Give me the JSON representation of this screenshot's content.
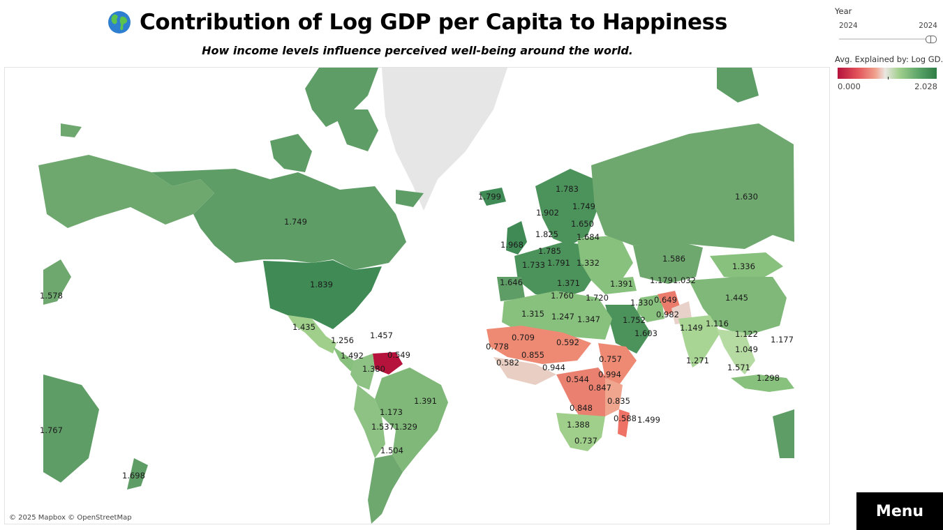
{
  "header": {
    "title": "Contribution of Log GDP per Capita to Happiness",
    "subtitle": "How income levels influence perceived well-being around the world.",
    "icon": "globe-icon"
  },
  "filters": {
    "year_title": "Year",
    "year_min": "2024",
    "year_max": "2024",
    "selected_year": 2024
  },
  "legend": {
    "title": "Avg. Explained by: Log GD..",
    "min_label": "0.000",
    "max_label": "2.028",
    "min": 0.0,
    "max": 2.028,
    "colors": {
      "low": "#b5123c",
      "mid": "#eae6e2",
      "high": "#2f7c45",
      "no_data": "#e6e6e6"
    }
  },
  "map": {
    "attribution": "© 2025 Mapbox © OpenStreetMap",
    "regions": [
      {
        "name": "Canada",
        "label": "1.749",
        "value": 1.749
      },
      {
        "name": "United States",
        "label": "1.839",
        "value": 1.839
      },
      {
        "name": "Mexico",
        "label": "1.435",
        "value": 1.435
      },
      {
        "name": "Guatemala",
        "label": "1.256",
        "value": 1.256
      },
      {
        "name": "Costa Rica",
        "label": "1.492",
        "value": 1.492
      },
      {
        "name": "Dominican Republic",
        "label": "1.457",
        "value": 1.457
      },
      {
        "name": "Venezuela",
        "label": "0.549",
        "value": 0.549
      },
      {
        "name": "Colombia",
        "label": "1.380",
        "value": 1.38
      },
      {
        "name": "Brazil",
        "label": "1.391",
        "value": 1.391
      },
      {
        "name": "Bolivia",
        "label": "1.173",
        "value": 1.173
      },
      {
        "name": "Chile",
        "label": "1.537",
        "value": 1.537
      },
      {
        "name": "Paraguay",
        "label": "1.329",
        "value": 1.329
      },
      {
        "name": "Argentina",
        "label": "1.504",
        "value": 1.504
      },
      {
        "name": "Japan",
        "label": "1.578",
        "value": 1.578
      },
      {
        "name": "Australia",
        "label": "1.767",
        "value": 1.767
      },
      {
        "name": "New Zealand",
        "label": "1.698",
        "value": 1.698
      },
      {
        "name": "Iceland",
        "label": "1.799",
        "value": 1.799
      },
      {
        "name": "Norway",
        "label": "1.902",
        "value": 1.902
      },
      {
        "name": "Sweden",
        "label": "1.783",
        "value": 1.783
      },
      {
        "name": "Finland",
        "label": "1.749",
        "value": 1.749
      },
      {
        "name": "Estonia",
        "label": "1.650",
        "value": 1.65
      },
      {
        "name": "Latvia",
        "label": "1.684",
        "value": 1.684
      },
      {
        "name": "Ireland",
        "label": "1.968",
        "value": 1.968
      },
      {
        "name": "Denmark",
        "label": "1.825",
        "value": 1.825
      },
      {
        "name": "Germany",
        "label": "1.785",
        "value": 1.785
      },
      {
        "name": "France",
        "label": "1.733",
        "value": 1.733
      },
      {
        "name": "Czechia",
        "label": "1.791",
        "value": 1.791
      },
      {
        "name": "Ukraine",
        "label": "1.332",
        "value": 1.332
      },
      {
        "name": "Portugal",
        "label": "1.646",
        "value": 1.646
      },
      {
        "name": "Italy",
        "label": "1.371",
        "value": 1.371
      },
      {
        "name": "Turkey",
        "label": "1.391",
        "value": 1.391
      },
      {
        "name": "Russia",
        "label": "1.630",
        "value": 1.63
      },
      {
        "name": "Kazakhstan",
        "label": "1.586",
        "value": 1.586
      },
      {
        "name": "Mongolia",
        "label": "1.336",
        "value": 1.336
      },
      {
        "name": "China",
        "label": "1.445",
        "value": 1.445
      },
      {
        "name": "Uzbekistan",
        "label": "1.179",
        "value": 1.179
      },
      {
        "name": "Tajikistan",
        "label": "1.032",
        "value": 1.032
      },
      {
        "name": "Iran",
        "label": "1.330",
        "value": 1.33
      },
      {
        "name": "Afghanistan",
        "label": "0.649",
        "value": 0.649
      },
      {
        "name": "Pakistan",
        "label": "0.982",
        "value": 0.982
      },
      {
        "name": "India",
        "label": "1.149",
        "value": 1.149
      },
      {
        "name": "Myanmar",
        "label": "1.116",
        "value": 1.116
      },
      {
        "name": "Laos",
        "label": "1.122",
        "value": 1.122
      },
      {
        "name": "Philippines",
        "label": "1.177",
        "value": 1.177
      },
      {
        "name": "Cambodia",
        "label": "1.049",
        "value": 1.049
      },
      {
        "name": "Malaysia",
        "label": "1.571",
        "value": 1.571
      },
      {
        "name": "Indonesia",
        "label": "1.298",
        "value": 1.298
      },
      {
        "name": "Sri Lanka",
        "label": "1.271",
        "value": 1.271
      },
      {
        "name": "Tunisia",
        "label": "1.760",
        "value": 1.76
      },
      {
        "name": "Lebanon",
        "label": "1.720",
        "value": 1.72
      },
      {
        "name": "Algeria",
        "label": "1.315",
        "value": 1.315
      },
      {
        "name": "Libya",
        "label": "1.247",
        "value": 1.247
      },
      {
        "name": "Egypt",
        "label": "1.347",
        "value": 1.347
      },
      {
        "name": "Saudi Arabia",
        "label": "1.752",
        "value": 1.752
      },
      {
        "name": "Oman",
        "label": "1.603",
        "value": 1.603
      },
      {
        "name": "Mali",
        "label": "0.709",
        "value": 0.709
      },
      {
        "name": "Niger",
        "label": "0.592",
        "value": 0.592
      },
      {
        "name": "Senegal",
        "label": "0.778",
        "value": 0.778
      },
      {
        "name": "Burkina Faso",
        "label": "0.855",
        "value": 0.855
      },
      {
        "name": "Sierra Leone",
        "label": "0.582",
        "value": 0.582
      },
      {
        "name": "Cameroon",
        "label": "0.944",
        "value": 0.944
      },
      {
        "name": "Ethiopia",
        "label": "0.757",
        "value": 0.757
      },
      {
        "name": "Kenya",
        "label": "0.994",
        "value": 0.994
      },
      {
        "name": "DR Congo",
        "label": "0.544",
        "value": 0.544
      },
      {
        "name": "Tanzania",
        "label": "0.847",
        "value": 0.847
      },
      {
        "name": "Zambia",
        "label": "0.848",
        "value": 0.848
      },
      {
        "name": "Mozambique",
        "label": "0.835",
        "value": 0.835
      },
      {
        "name": "Madagascar",
        "label": "0.588",
        "value": 0.588
      },
      {
        "name": "Mauritius",
        "label": "1.499",
        "value": 1.499
      },
      {
        "name": "Botswana",
        "label": "1.388",
        "value": 1.388
      },
      {
        "name": "South Africa",
        "label": "0.737",
        "value": 0.737
      }
    ]
  },
  "menu": {
    "label": "Menu"
  }
}
